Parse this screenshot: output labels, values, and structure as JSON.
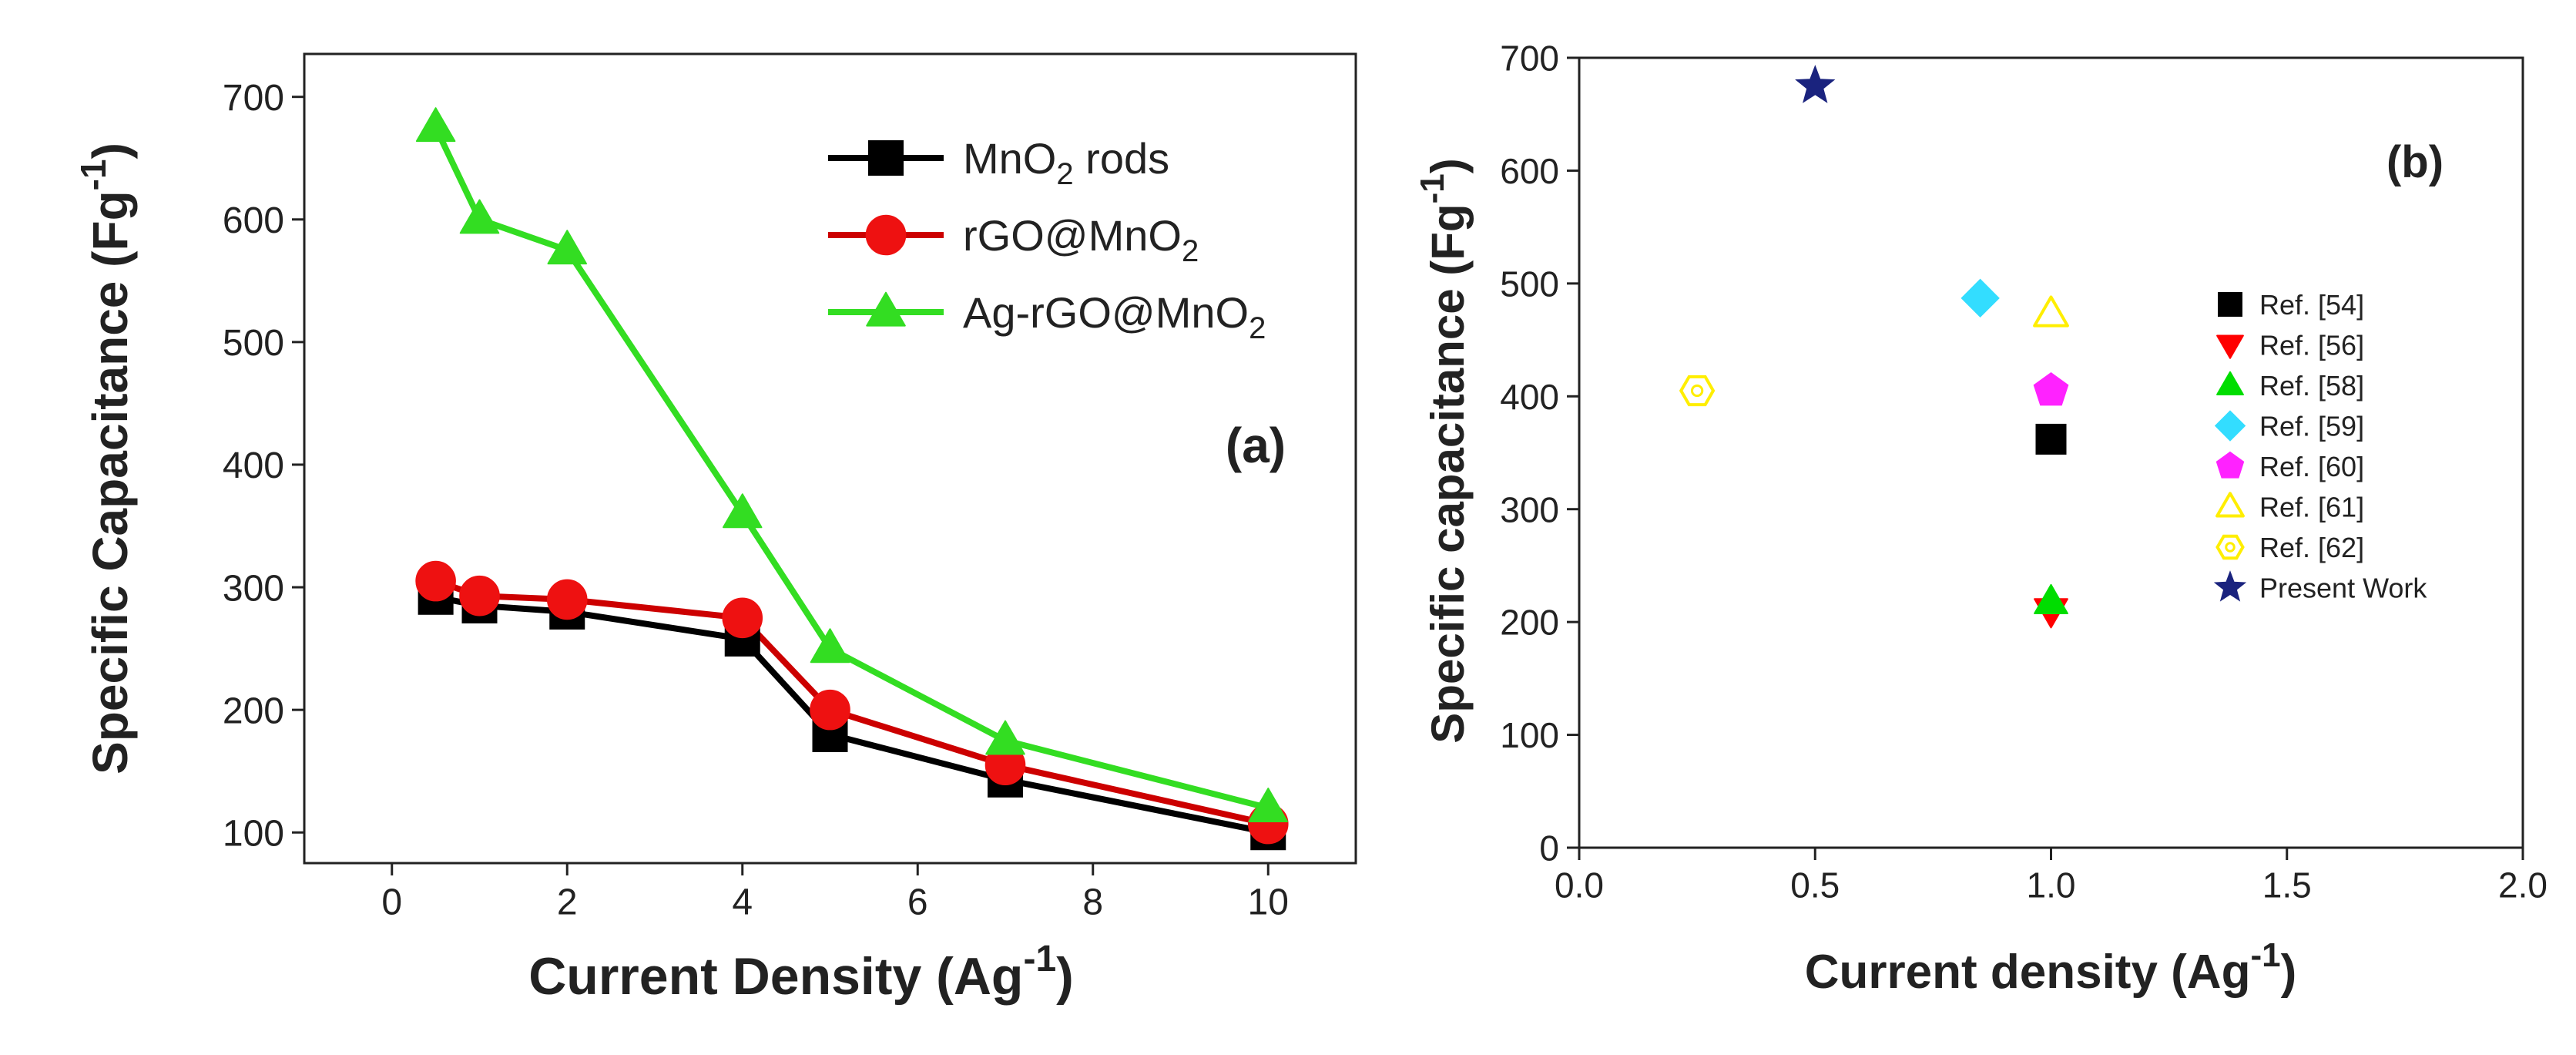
{
  "chart_data": [
    {
      "type": "line",
      "panel_label": "(a)",
      "xlabel": "Current Density (Ag",
      "xlabel_sup": "-1",
      "xlabel_end": ")",
      "ylabel": "Specific Capacitance (Fg",
      "ylabel_sup": "-1",
      "ylabel_end": ")",
      "xlim": [
        -1,
        11
      ],
      "ylim": [
        75,
        735
      ],
      "xticks": [
        "0",
        "2",
        "4",
        "6",
        "8",
        "10"
      ],
      "xtick_values": [
        0,
        2,
        4,
        6,
        8,
        10
      ],
      "yticks": [
        "100",
        "200",
        "300",
        "400",
        "500",
        "600",
        "700"
      ],
      "ytick_values": [
        100,
        200,
        300,
        400,
        500,
        600,
        700
      ],
      "legend_position": "top-right",
      "series": [
        {
          "name": "MnO",
          "name_sub": "2",
          "name_end": " rods",
          "marker": "square",
          "color": "#000000",
          "marker_color": "#000000",
          "x": [
            0.5,
            1,
            2,
            4,
            5,
            7,
            10
          ],
          "values": [
            292,
            285,
            280,
            258,
            180,
            143,
            100
          ]
        },
        {
          "name": "rGO@MnO",
          "name_sub": "2",
          "name_end": "",
          "marker": "circle",
          "color": "#cc0000",
          "marker_color": "#ee1111",
          "x": [
            0.5,
            1,
            2,
            4,
            5,
            7,
            10
          ],
          "values": [
            305,
            293,
            290,
            275,
            200,
            155,
            107
          ]
        },
        {
          "name": "Ag-rGO@MnO",
          "name_sub": "2",
          "name_end": "",
          "marker": "triangle",
          "color": "#33dd22",
          "marker_color": "#33dd22",
          "x": [
            0.5,
            1,
            2,
            4,
            5,
            7,
            10
          ],
          "values": [
            675,
            600,
            575,
            360,
            250,
            175,
            120
          ]
        }
      ]
    },
    {
      "type": "scatter",
      "panel_label": "(b)",
      "xlabel": "Current density (Ag",
      "xlabel_sup": "-1",
      "xlabel_end": ")",
      "ylabel": "Specific capacitance (Fg",
      "ylabel_sup": "-1",
      "ylabel_end": ")",
      "xlim": [
        0,
        2
      ],
      "ylim": [
        0,
        700
      ],
      "xticks": [
        "0.0",
        "0.5",
        "1.0",
        "1.5",
        "2.0"
      ],
      "xtick_values": [
        0,
        0.5,
        1.0,
        1.5,
        2.0
      ],
      "yticks": [
        "0",
        "100",
        "200",
        "300",
        "400",
        "500",
        "600",
        "700"
      ],
      "ytick_values": [
        0,
        100,
        200,
        300,
        400,
        500,
        600,
        700
      ],
      "legend_position": "right",
      "series": [
        {
          "name": "Ref. [54]",
          "marker": "square",
          "color": "#000000",
          "filled": true,
          "x": [
            1.0
          ],
          "values": [
            362
          ]
        },
        {
          "name": "Ref. [56]",
          "marker": "triangle-down",
          "color": "#ff0000",
          "filled": true,
          "x": [
            1.0
          ],
          "values": [
            210
          ]
        },
        {
          "name": "Ref. [58]",
          "marker": "triangle-up",
          "color": "#00dd00",
          "filled": true,
          "x": [
            1.0
          ],
          "values": [
            218
          ]
        },
        {
          "name": "Ref. [59]",
          "marker": "diamond",
          "color": "#33ddff",
          "filled": true,
          "x": [
            0.85
          ],
          "values": [
            487
          ]
        },
        {
          "name": "Ref. [60]",
          "marker": "pentagon",
          "color": "#ff22ff",
          "filled": true,
          "x": [
            1.0
          ],
          "values": [
            405
          ]
        },
        {
          "name": "Ref. [61]",
          "marker": "triangle-up",
          "color": "#ffee00",
          "filled": false,
          "x": [
            1.0
          ],
          "values": [
            473
          ]
        },
        {
          "name": "Ref. [62]",
          "marker": "hexagon",
          "color": "#ffee00",
          "filled": false,
          "x": [
            0.25
          ],
          "values": [
            405
          ]
        },
        {
          "name": "Present Work",
          "marker": "star",
          "color": "#1a237e",
          "filled": true,
          "x": [
            0.5
          ],
          "values": [
            675
          ]
        }
      ]
    }
  ]
}
